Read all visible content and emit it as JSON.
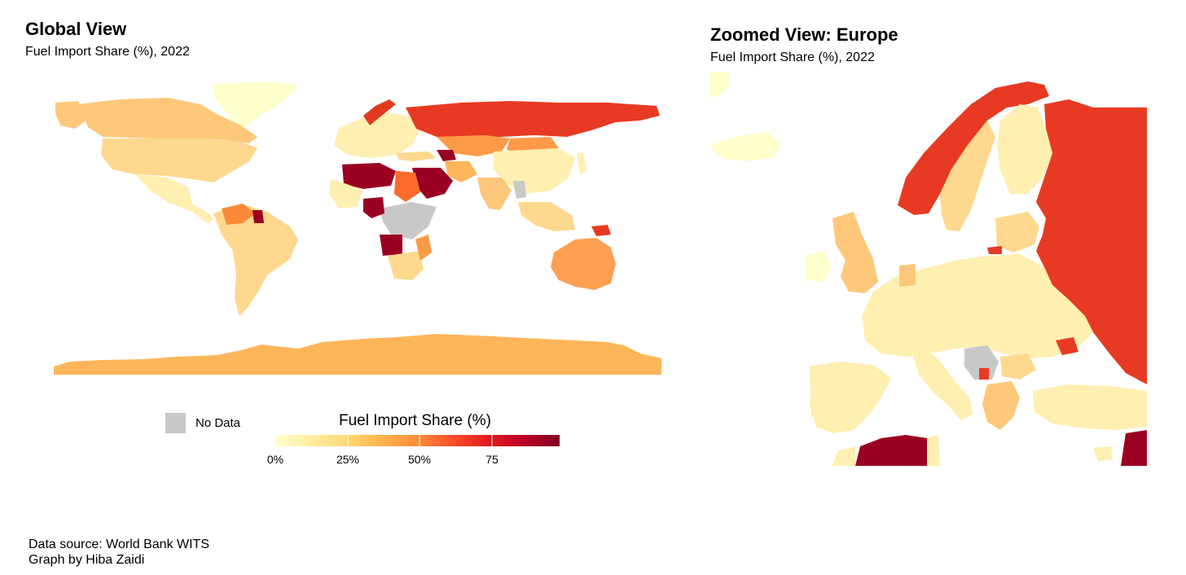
{
  "global": {
    "title": "Global View",
    "subtitle": "Fuel Import Share (%), 2022"
  },
  "europe": {
    "title": "Zoomed View: Europe",
    "subtitle": "Fuel Import Share (%), 2022"
  },
  "legend": {
    "title": "Fuel Import Share (%)",
    "no_data_label": "No Data",
    "ticks": [
      "0%",
      "25%",
      "50%",
      "75"
    ],
    "no_data_color": "#c8c8c8",
    "scale_colors": [
      "#ffffcc",
      "#ffeda0",
      "#fed976",
      "#feb24c",
      "#fd8d3c",
      "#fc4e2a",
      "#e31a1c",
      "#bd0026",
      "#800026"
    ]
  },
  "caption": {
    "source": "Data source: World Bank WITS",
    "author": "Graph by Hiba Zaidi"
  }
}
